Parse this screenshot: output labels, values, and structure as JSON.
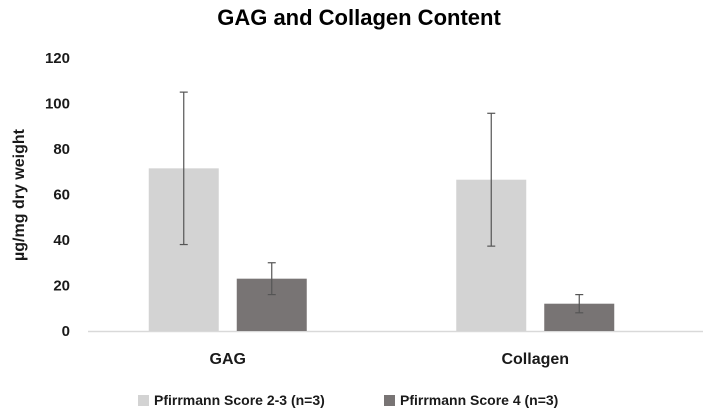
{
  "chart_data": {
    "type": "bar",
    "title": "GAG and Collagen Content",
    "xlabel": "",
    "ylabel": "µg/mg dry weight",
    "ylim": [
      0,
      120
    ],
    "yticks": [
      0,
      20,
      40,
      60,
      80,
      100,
      120
    ],
    "grid": false,
    "legend_position": "bottom",
    "categories": [
      "GAG",
      "Collagen"
    ],
    "series": [
      {
        "name": "Pfirrmann Score 2-3 (n=3)",
        "color": "#d3d3d3",
        "values": [
          71.5,
          66.5
        ],
        "error": [
          33.5,
          29.2
        ]
      },
      {
        "name": "Pfirrmann Score 4 (n=3)",
        "color": "#787474",
        "values": [
          23,
          12
        ],
        "error": [
          7,
          4
        ]
      }
    ]
  }
}
